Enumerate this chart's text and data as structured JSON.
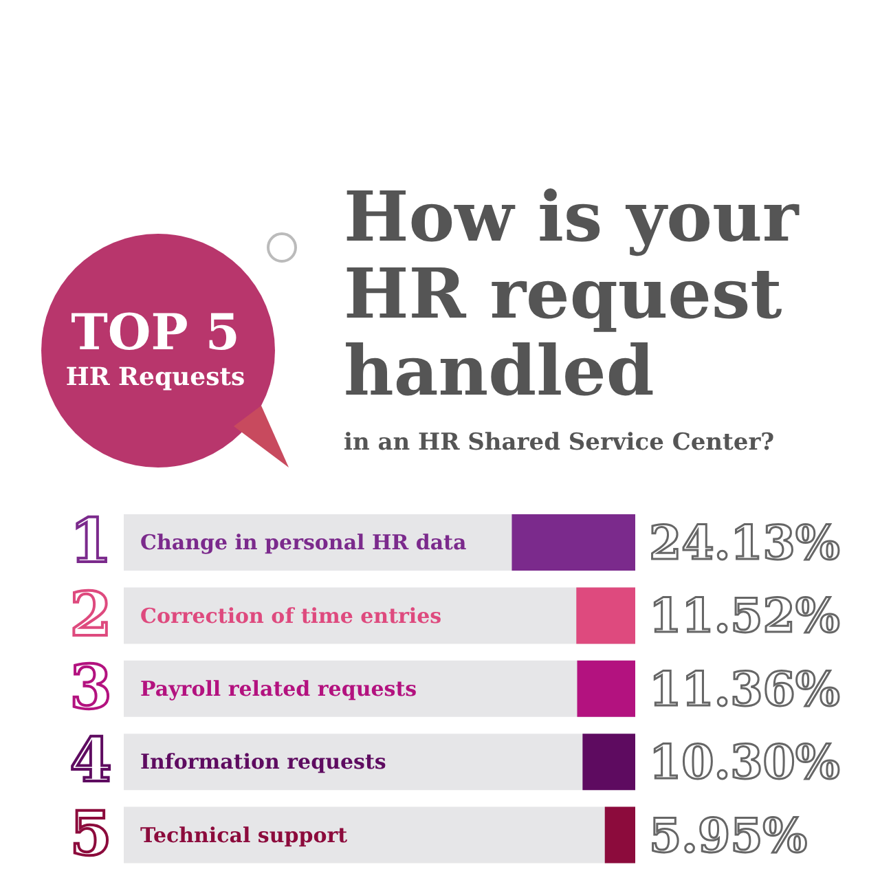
{
  "chart_data": {
    "type": "bar",
    "orientation": "horizontal",
    "title": "How is your HR request handled",
    "subtitle": "in an HR Shared Service Center?",
    "categories": [
      "Change in personal HR data",
      "Correction of time entries",
      "Payroll related requests",
      "Information requests",
      "Technical support"
    ],
    "values": [
      24.13,
      11.52,
      11.36,
      10.3,
      5.95
    ],
    "xlim": [
      100,
      0
    ],
    "colors": [
      "#7b2a8c",
      "#de4a7e",
      "#b3127f",
      "#5e0b60",
      "#8c0b3c"
    ],
    "value_labels": [
      "24.13%",
      "11.52%",
      "11.36%",
      "10.30%",
      "5.95%"
    ],
    "annotations": [
      "TOP 5",
      "HR Requests",
      "1",
      "2",
      "3",
      "4",
      "5"
    ]
  }
}
